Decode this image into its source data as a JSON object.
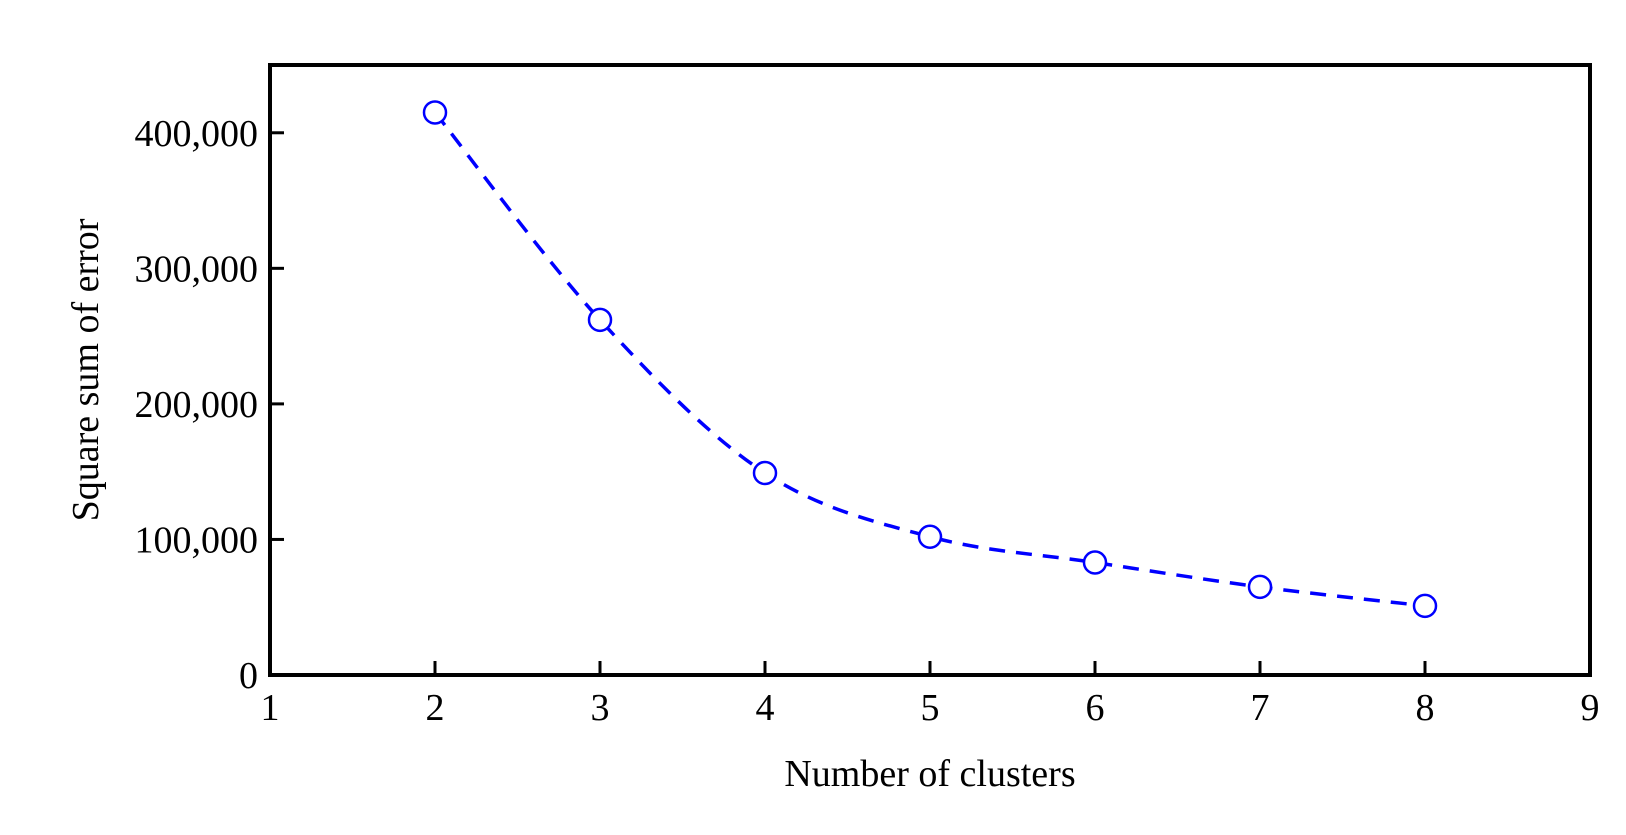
{
  "chart_data": {
    "type": "line",
    "title": "",
    "xlabel": "Number of clusters",
    "ylabel": "Square sum of error",
    "xlim": [
      1,
      9
    ],
    "ylim": [
      0,
      450000
    ],
    "x_ticks": [
      1,
      2,
      3,
      4,
      5,
      6,
      7,
      8,
      9
    ],
    "x_tick_labels": [
      "1",
      "2",
      "3",
      "4",
      "5",
      "6",
      "7",
      "8",
      "9"
    ],
    "y_ticks": [
      0,
      100000,
      200000,
      300000,
      400000
    ],
    "y_tick_labels": [
      "0",
      "100,000",
      "200,000",
      "300,000",
      "400,000"
    ],
    "grid": false,
    "series": [
      {
        "x": [
          2,
          3,
          4,
          5,
          6,
          7,
          8
        ],
        "y": [
          415000,
          262000,
          149000,
          102000,
          83000,
          65000,
          51000
        ],
        "color": "#0000ff",
        "line_style": "dashed",
        "marker": "open-circle"
      }
    ]
  }
}
